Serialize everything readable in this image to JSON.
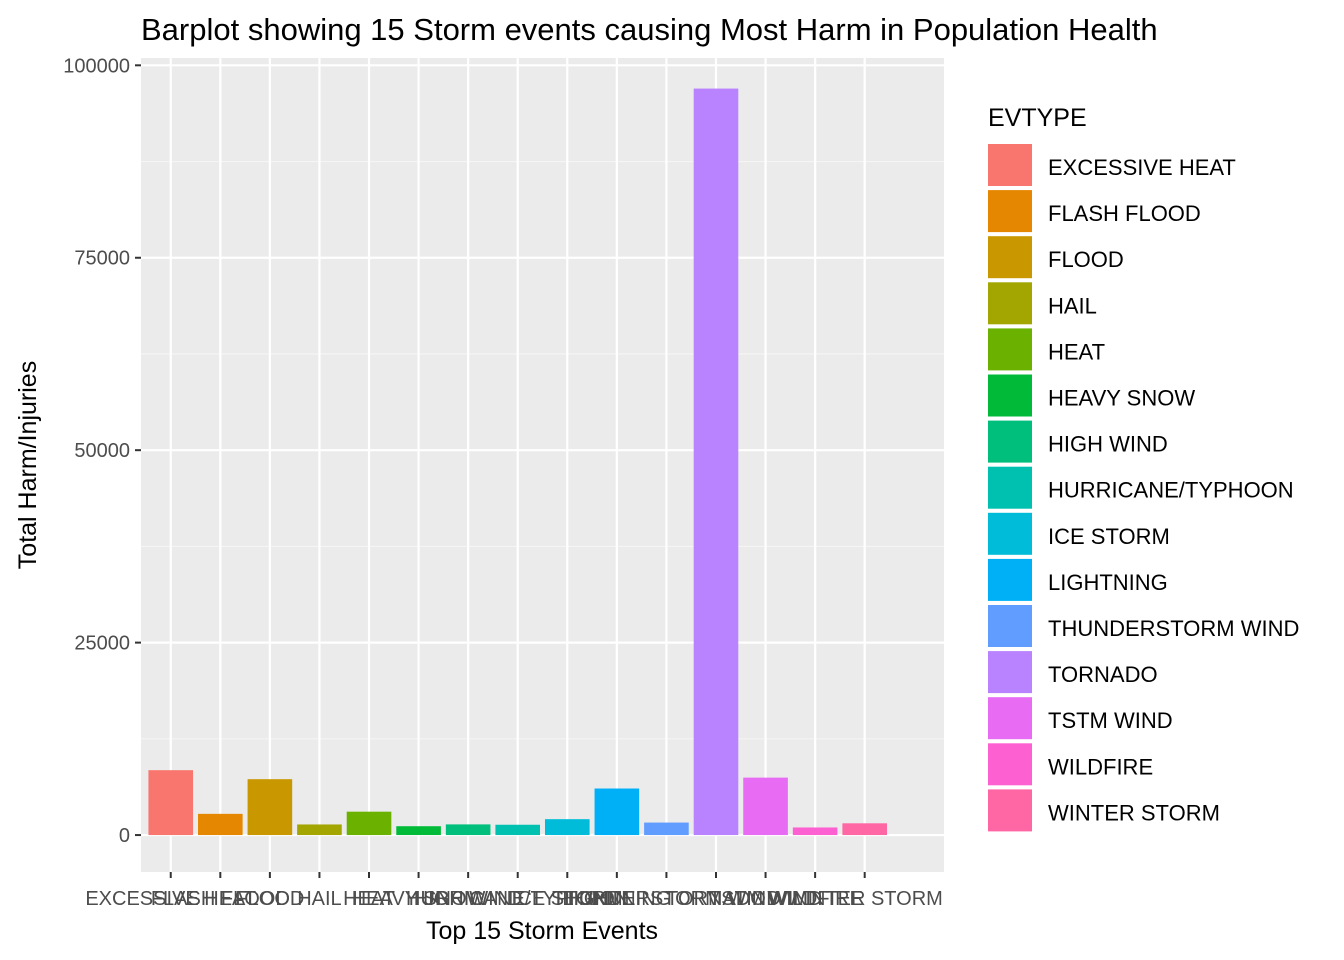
{
  "chart_data": {
    "type": "bar",
    "title": "Barplot showing 15 Storm events causing Most Harm in Population Health",
    "xlabel": "Top 15 Storm Events",
    "ylabel": "Total Harm/Injuries",
    "ylim": [
      -4800,
      100950
    ],
    "yticks": [
      0,
      25000,
      50000,
      75000,
      100000
    ],
    "yticklabels": [
      "0",
      "25000",
      "50000",
      "75000",
      "100000"
    ],
    "grid": true,
    "legend_position": "right",
    "legend_title": "EVTYPE",
    "categories": [
      "EXCESSIVE HEAT",
      "FLASH FLOOD",
      "FLOOD",
      "HAIL",
      "HEAT",
      "HEAVY SNOW",
      "HIGH WIND",
      "HURRICANE/TYPHOON",
      "ICE STORM",
      "LIGHTNING",
      "THUNDERSTORM WIND",
      "TORNADO",
      "TSTM WIND",
      "WILDFIRE",
      "WINTER STORM"
    ],
    "values": [
      8428,
      2755,
      7259,
      1376,
      3037,
      1148,
      1385,
      1339,
      2064,
      6046,
      1621,
      96979,
      7461,
      986,
      1527
    ],
    "colors": [
      "#F8766D",
      "#E58700",
      "#C99800",
      "#A3A500",
      "#6BB100",
      "#00BA38",
      "#00BF7D",
      "#00C0AF",
      "#00BCD8",
      "#00B0F6",
      "#619CFF",
      "#B983FF",
      "#E76BF3",
      "#FD61D1",
      "#FF67A4"
    ]
  }
}
